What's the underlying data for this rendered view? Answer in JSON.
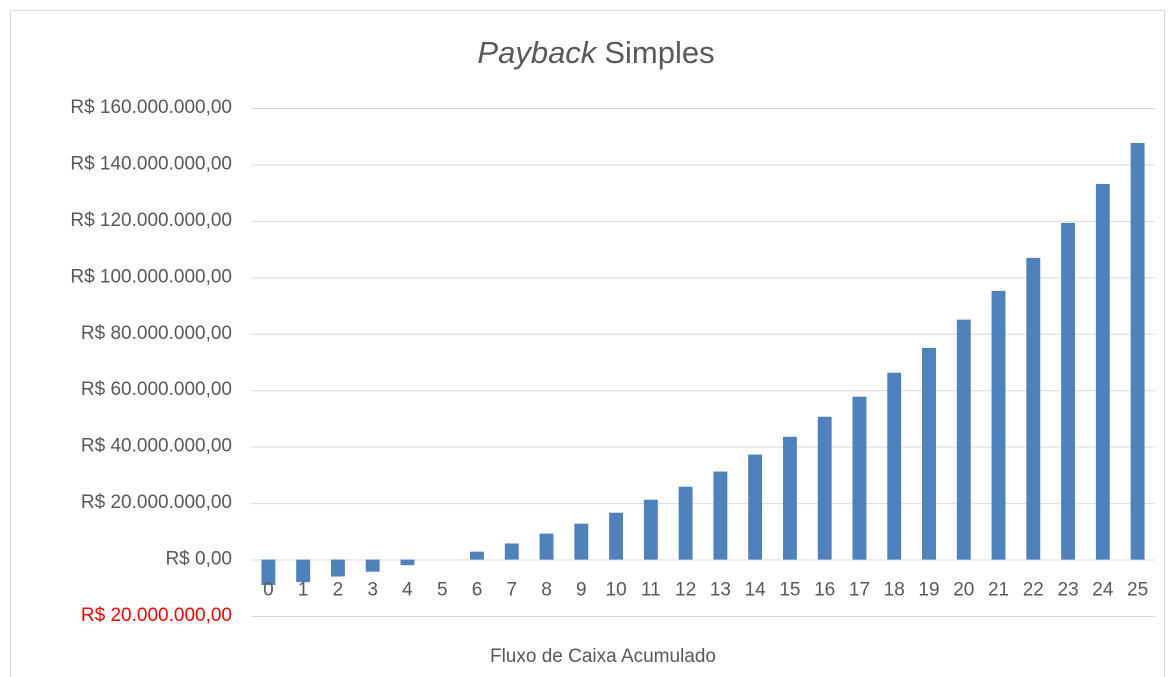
{
  "chart_data": {
    "type": "bar",
    "title": [
      {
        "text": "Payback",
        "italic": true
      },
      {
        "text": "Simples",
        "italic": false
      }
    ],
    "x_label": "Fluxo de Caixa Acumulado",
    "categories": [
      "0",
      "1",
      "2",
      "3",
      "4",
      "5",
      "6",
      "7",
      "8",
      "9",
      "10",
      "11",
      "12",
      "13",
      "14",
      "15",
      "16",
      "17",
      "18",
      "19",
      "20",
      "21",
      "22",
      "23",
      "24",
      "25"
    ],
    "values": [
      -9000000,
      -8000000,
      -6000000,
      -4300000,
      -2000000,
      0,
      2800000,
      5700000,
      9200000,
      12700000,
      16600000,
      21200000,
      25800000,
      31200000,
      37200000,
      43500000,
      50600000,
      57700000,
      66200000,
      75000000,
      85000000,
      95200000,
      106900000,
      119300000,
      133100000,
      147600000
    ],
    "color": "#4f81bd",
    "ylim": [
      -20000000,
      160000000
    ],
    "yticks": [
      {
        "value": -20000000,
        "label": "R$ 20.000.000,00"
      },
      {
        "value": 0,
        "label": "R$ 0,00"
      },
      {
        "value": 20000000,
        "label": "R$ 20.000.000,00"
      },
      {
        "value": 40000000,
        "label": "R$ 40.000.000,00"
      },
      {
        "value": 60000000,
        "label": "R$ 60.000.000,00"
      },
      {
        "value": 80000000,
        "label": "R$ 80.000.000,00"
      },
      {
        "value": 100000000,
        "label": "R$ 100.000.000,00"
      },
      {
        "value": 120000000,
        "label": "R$ 120.000.000,00"
      },
      {
        "value": 140000000,
        "label": "R$ 140.000.000,00"
      },
      {
        "value": 160000000,
        "label": "R$ 160.000.000,00"
      }
    ],
    "negative_tick_color": "#ff0000",
    "grid": true
  }
}
